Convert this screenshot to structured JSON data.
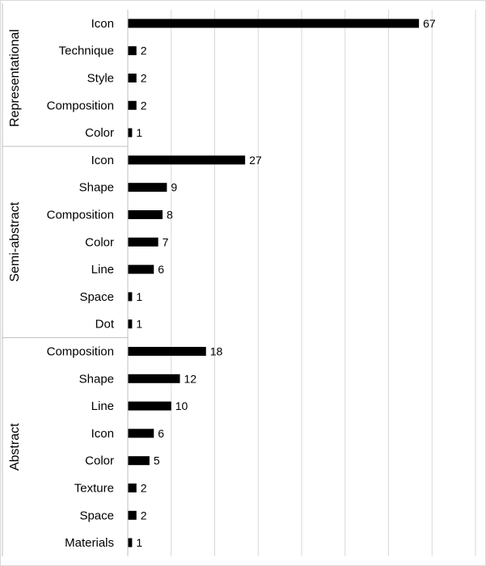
{
  "chart_data": {
    "type": "bar",
    "orientation": "horizontal",
    "title": "",
    "xlabel": "",
    "ylabel": "",
    "xlim": [
      0,
      80
    ],
    "gridlines": "vertical",
    "bar_color": "#000000",
    "grid_color": "#d9d9d9",
    "groups": [
      {
        "name": "Representational",
        "categories": [
          "Icon",
          "Technique",
          "Style",
          "Composition",
          "Color"
        ],
        "values": [
          67,
          2,
          2,
          2,
          1
        ]
      },
      {
        "name": "Semi-abstract",
        "categories": [
          "Icon",
          "Shape",
          "Composition",
          "Color",
          "Line",
          "Space",
          "Dot"
        ],
        "values": [
          27,
          9,
          8,
          7,
          6,
          1,
          1
        ]
      },
      {
        "name": "Abstract",
        "categories": [
          "Composition",
          "Shape",
          "Line",
          "Icon",
          "Color",
          "Texture",
          "Space",
          "Materials"
        ],
        "values": [
          18,
          12,
          10,
          6,
          5,
          2,
          2,
          1
        ]
      }
    ]
  }
}
